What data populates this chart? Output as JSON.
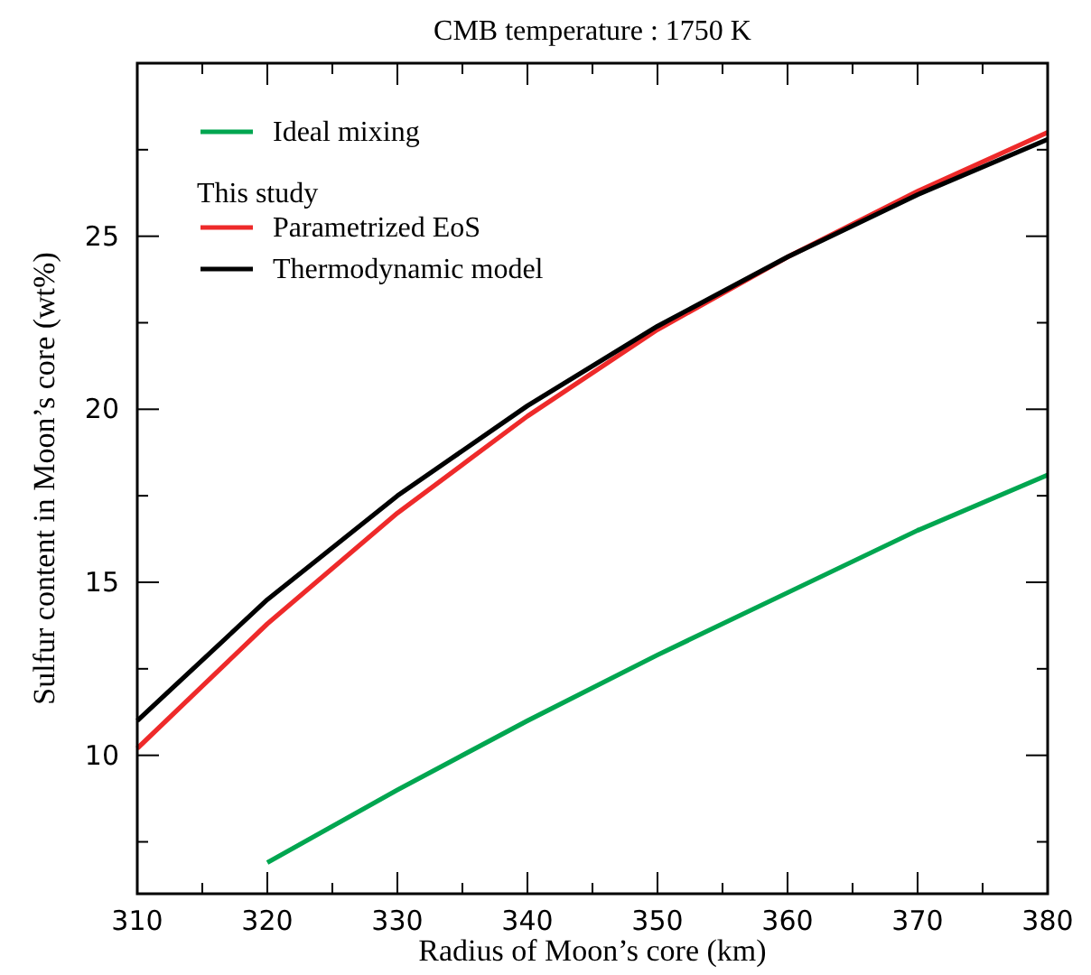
{
  "chart_data": {
    "type": "line",
    "title": "CMB temperature : 1750 K",
    "xlabel": "Radius of Moon’s core (km)",
    "ylabel": "Sulfur content in Moon’s core (wt%)",
    "xlim": [
      310,
      380
    ],
    "xticks": [
      310,
      {
        "value": 315,
        "label": null
      },
      320,
      {
        "value": 325,
        "label": null
      },
      330,
      {
        "value": 335,
        "label": null
      },
      340,
      {
        "value": 345,
        "label": null
      },
      350,
      {
        "value": 355,
        "label": null
      },
      360,
      {
        "value": 365,
        "label": null
      },
      370,
      {
        "value": 375,
        "label": null
      },
      380
    ],
    "ylim": [
      6,
      30
    ],
    "yticks": [
      {
        "value": 7.5,
        "label": null
      },
      10,
      {
        "value": 12.5,
        "label": null
      },
      15,
      {
        "value": 17.5,
        "label": null
      },
      20,
      {
        "value": 22.5,
        "label": null
      },
      25,
      {
        "value": 27.5,
        "label": null
      }
    ],
    "x": [
      310,
      320,
      330,
      340,
      350,
      360,
      370,
      380
    ],
    "series": [
      {
        "name": "Ideal mixing",
        "color": "#00a650",
        "values": [
          null,
          6.9,
          9.0,
          11.0,
          12.9,
          14.7,
          16.5,
          18.1
        ]
      },
      {
        "name": "Parametrized EoS",
        "color": "#ee2a2a",
        "values": [
          10.2,
          13.8,
          17.0,
          19.8,
          22.3,
          24.4,
          26.3,
          28.0
        ]
      },
      {
        "name": "Thermodynamic model",
        "color": "#000000",
        "values": [
          11.0,
          14.5,
          17.5,
          20.1,
          22.4,
          24.4,
          26.2,
          27.8
        ]
      }
    ],
    "annotations": [
      "This study"
    ],
    "legend": "top left",
    "grid": false,
    "line_style": "solid",
    "marker": "none"
  }
}
